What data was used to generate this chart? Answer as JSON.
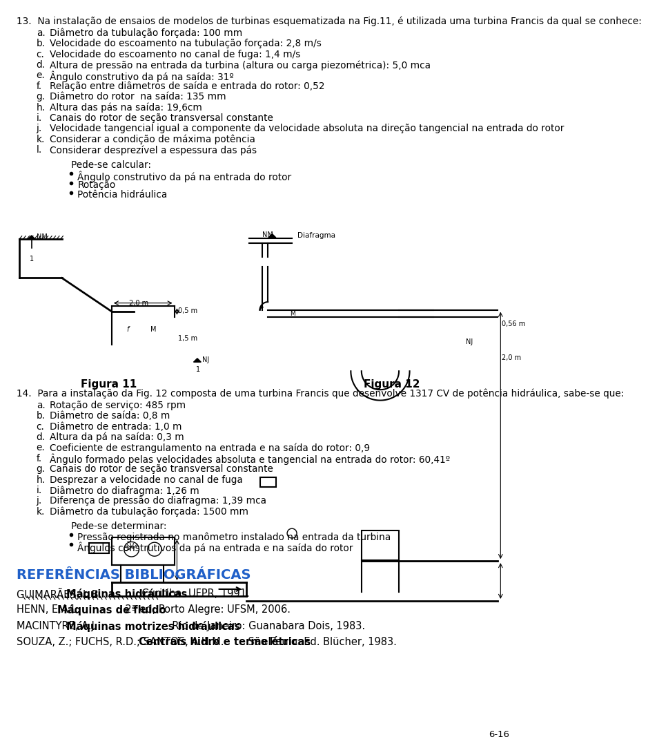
{
  "page_number": "6-16",
  "background_color": "#ffffff",
  "text_color": "#000000",
  "q13_header": "13.  Na instalação de ensaios de modelos de turbinas esquematizada na Fig.11, é utilizada uma turbina Francis da qual se conhece:",
  "q13_items": [
    "Diâmetro da tubulação forçada: 100 mm",
    "Velocidade do escoamento na tubulação forçada: 2,8 m/s",
    "Velocidade do escoamento no canal de fuga: 1,4 m/s",
    "Altura de pressão na entrada da turbina (altura ou carga piezométrica): 5,0 mca",
    "Ângulo construtivo da pá na saída: 31º",
    "Relação entre diâmetros de saída e entrada do rotor: 0,52",
    "Diâmetro do rotor  na saída: 135 mm",
    "Altura das pás na saída: 19,6cm",
    "Canais do rotor de seção transversal constante",
    "Velocidade tangencial igual a componente da velocidade absoluta na direção tangencial na entrada do rotor",
    "Considerar a condição de máxima potência",
    "Considerar desprezível a espessura das pás"
  ],
  "q13_labels": [
    "a.",
    "b.",
    "c.",
    "d.",
    "e.",
    "f.",
    "g.",
    "h.",
    "i.",
    "j.",
    "k.",
    "l."
  ],
  "q13_pede_header": "Pede-se calcular:",
  "q13_pede_items": [
    "Ângulo construtivo da pá na entrada do rotor",
    "Rotação",
    "Potência hidráulica"
  ],
  "q14_header": "14.  Para a instalação da Fig. 12 composta de uma turbina Francis que desenvolve 1317 CV de potência hidráulica, sabe-se que:",
  "q14_items": [
    "Rotação de serviço: 485 rpm",
    "Diâmetro de saída: 0,8 m",
    "Diâmetro de entrada: 1,0 m",
    "Altura da pá na saída: 0,3 m",
    "Coeficiente de estrangulamento na entrada e na saída do rotor: 0,9",
    "Ângulo formado pelas velocidades absoluta e tangencial na entrada do rotor: 60,41º",
    "Canais do rotor de seção transversal constante",
    "Desprezar a velocidade no canal de fuga",
    "Diâmetro do diafragma: 1,26 m",
    "Diferença de pressão do diafragma: 1,39 mca",
    "Diâmetro da tubulação forçada: 1500 mm"
  ],
  "q14_labels": [
    "a.",
    "b.",
    "c.",
    "d.",
    "e.",
    "f.",
    "g.",
    "h.",
    "i.",
    "j.",
    "k."
  ],
  "q14_pede_header": "Pede-se determinar:",
  "q14_pede_items": [
    "Pressão registrada no manômetro instalado na entrada da turbina",
    "Ângulos construtivos da pá na entrada e na saída do rotor"
  ],
  "ref_title": "REFERÊNCIAS BIBLIOGRÁFICAS",
  "ref_color": "#1f5fc8",
  "references": [
    {
      "normal": "GUIMARÃES, L.B. ",
      "bold": "Máquinas hidráulicas",
      "normal2": ". Curitiba: UFPR, 1991."
    },
    {
      "normal": "HENN, E.A.L. ",
      "bold": "Máquinas de fluido",
      "normal2": ". 2ª ed, Porto Alegre: UFSM, 2006."
    },
    {
      "normal": "MACINTYRE, A.J. ",
      "bold": "Máquinas motrizes hidráulicas",
      "normal2": ". Rio de Janeiro: Guanabara Dois, 1983."
    },
    {
      "normal": "SOUZA, Z.; FUCHS, R.D.; SANTOS, A.H.M. ",
      "bold": "Centrais hidro e termelétricas",
      "normal2": ". São Paulo: Ed. Blücher, 1983."
    }
  ],
  "fig11_label": "Figura 11",
  "fig12_label": "Figura 12"
}
